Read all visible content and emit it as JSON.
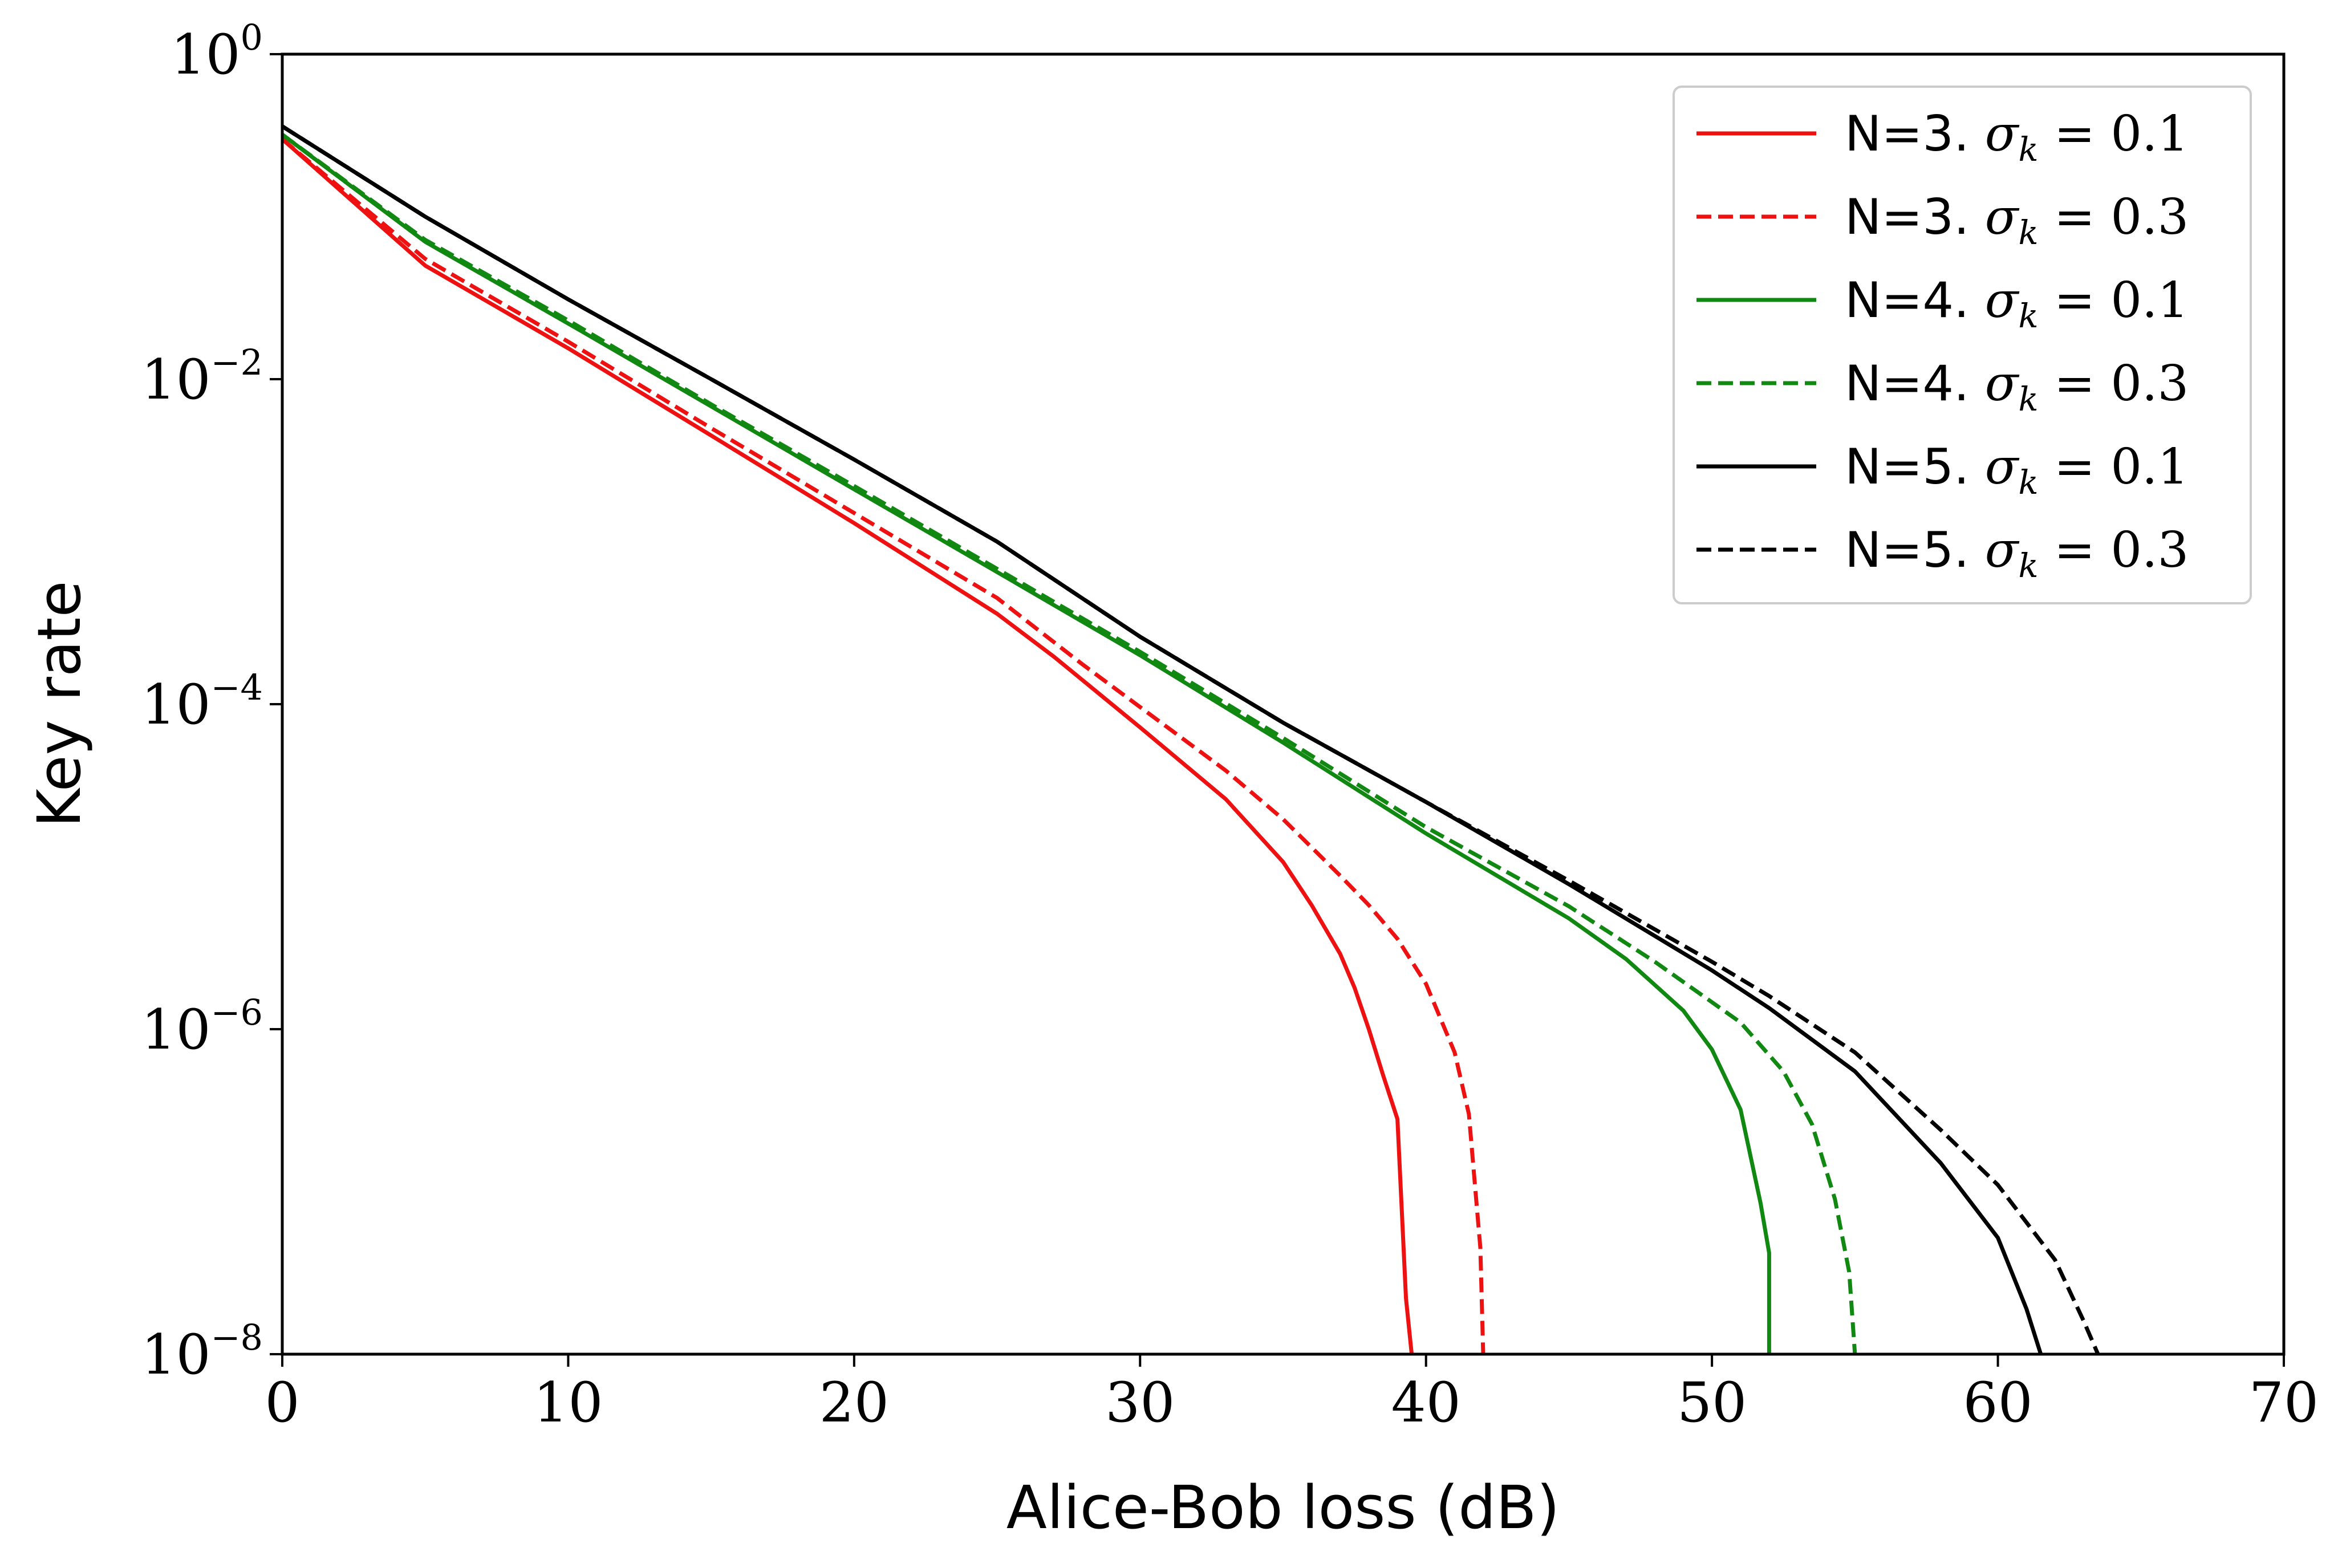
{
  "chart_data": {
    "type": "line",
    "title": "",
    "xlabel": "Alice-Bob loss (dB)",
    "ylabel": "Key rate",
    "xlim": [
      0,
      70
    ],
    "ylim": [
      1e-08,
      1
    ],
    "yscale": "log",
    "grid": false,
    "legend_position": "top-right",
    "x_ticks": [
      0,
      10,
      20,
      30,
      40,
      50,
      60,
      70
    ],
    "y_ticks": [
      {
        "base": "10",
        "exp": "0",
        "value": 1
      },
      {
        "base": "10",
        "exp": "−2",
        "value": 0.01
      },
      {
        "base": "10",
        "exp": "−4",
        "value": 0.0001
      },
      {
        "base": "10",
        "exp": "−6",
        "value": 1e-06
      },
      {
        "base": "10",
        "exp": "−8",
        "value": 1e-08
      }
    ],
    "series": [
      {
        "name": "N=3. σk = 0.1",
        "legend_prefix": "N=3.",
        "legend_sigma": "σ",
        "legend_sub": "k",
        "legend_eq": " = 0.1",
        "color": "#ee1111",
        "dash": "solid",
        "points": [
          [
            0,
            0.3
          ],
          [
            5,
            0.05
          ],
          [
            10,
            0.0155
          ],
          [
            15,
            0.0045
          ],
          [
            20,
            0.0013
          ],
          [
            25,
            0.00036
          ],
          [
            27,
            0.000195
          ],
          [
            30,
            7.2e-05
          ],
          [
            33,
            2.6e-05
          ],
          [
            35,
            1.07e-05
          ],
          [
            36,
            5.8e-06
          ],
          [
            37,
            2.9e-06
          ],
          [
            37.5,
            1.8e-06
          ],
          [
            38,
            1e-06
          ],
          [
            38.5,
            5.2e-07
          ],
          [
            39,
            2.8e-07
          ],
          [
            39.3,
            2.2e-08
          ],
          [
            39.5,
            1e-08
          ]
        ]
      },
      {
        "name": "N=3. σk = 0.3",
        "legend_prefix": "N=3.",
        "legend_sigma": "σ",
        "legend_sub": "k",
        "legend_eq": " = 0.3",
        "color": "#ee1111",
        "dash": "dashed",
        "points": [
          [
            0,
            0.3
          ],
          [
            5,
            0.055
          ],
          [
            10,
            0.017
          ],
          [
            15,
            0.005
          ],
          [
            20,
            0.0015
          ],
          [
            25,
            0.00045
          ],
          [
            28,
            0.000175
          ],
          [
            30,
            9.6e-05
          ],
          [
            33,
            3.9e-05
          ],
          [
            35,
            1.96e-05
          ],
          [
            37,
            8.8e-06
          ],
          [
            38,
            5.8e-06
          ],
          [
            39,
            3.6e-06
          ],
          [
            40,
            1.9e-06
          ],
          [
            41,
            7.2e-07
          ],
          [
            41.5,
            3e-07
          ],
          [
            41.9,
            4.5e-08
          ],
          [
            42,
            1e-08
          ]
        ]
      },
      {
        "name": "N=4. σk = 0.1",
        "legend_prefix": "N=4.",
        "legend_sigma": "σ",
        "legend_sub": "k",
        "legend_eq": " = 0.1",
        "color": "#118811",
        "dash": "solid",
        "points": [
          [
            0,
            0.32
          ],
          [
            5,
            0.07
          ],
          [
            10,
            0.022
          ],
          [
            15,
            0.0068
          ],
          [
            20,
            0.0021
          ],
          [
            25,
            0.00065
          ],
          [
            30,
            0.0002
          ],
          [
            35,
            5.8e-05
          ],
          [
            40,
            1.6e-05
          ],
          [
            45,
            4.8e-06
          ],
          [
            47,
            2.7e-06
          ],
          [
            49,
            1.3e-06
          ],
          [
            50,
            7.5e-07
          ],
          [
            51,
            3.2e-07
          ],
          [
            51.7,
            8.5e-08
          ],
          [
            52,
            4.2e-08
          ],
          [
            52,
            1e-08
          ]
        ]
      },
      {
        "name": "N=4. σk = 0.3",
        "legend_prefix": "N=4.",
        "legend_sigma": "σ",
        "legend_sub": "k",
        "legend_eq": " = 0.3",
        "color": "#118811",
        "dash": "dashed",
        "points": [
          [
            0,
            0.32
          ],
          [
            5,
            0.072
          ],
          [
            10,
            0.023
          ],
          [
            15,
            0.007
          ],
          [
            20,
            0.0022
          ],
          [
            25,
            0.00068
          ],
          [
            30,
            0.00021
          ],
          [
            35,
            6.2e-05
          ],
          [
            40,
            1.75e-05
          ],
          [
            45,
            5.7e-06
          ],
          [
            48,
            2.6e-06
          ],
          [
            51,
            1.1e-06
          ],
          [
            52.5,
            5.5e-07
          ],
          [
            53.5,
            2.6e-07
          ],
          [
            54.3,
            9e-08
          ],
          [
            54.8,
            3.2e-08
          ],
          [
            55,
            1e-08
          ]
        ]
      },
      {
        "name": "N=5. σk = 0.1",
        "legend_prefix": "N=5.",
        "legend_sigma": "σ",
        "legend_sub": "k",
        "legend_eq": " = 0.1",
        "color": "#000000",
        "dash": "solid",
        "points": [
          [
            0,
            0.36
          ],
          [
            5,
            0.1
          ],
          [
            10,
            0.031
          ],
          [
            15,
            0.01
          ],
          [
            20,
            0.0032
          ],
          [
            25,
            0.001
          ],
          [
            30,
            0.00026
          ],
          [
            35,
            7.7e-05
          ],
          [
            40,
            2.5e-05
          ],
          [
            45,
            7.8e-06
          ],
          [
            50,
            2.3e-06
          ],
          [
            52,
            1.35e-06
          ],
          [
            55,
            5.5e-07
          ],
          [
            58,
            1.5e-07
          ],
          [
            60,
            5.2e-08
          ],
          [
            61,
            1.9e-08
          ],
          [
            61.5,
            1e-08
          ]
        ]
      },
      {
        "name": "N=5. σk = 0.3",
        "legend_prefix": "N=5.",
        "legend_sigma": "σ",
        "legend_sub": "k",
        "legend_eq": " = 0.3",
        "color": "#000000",
        "dash": "dashed",
        "points": [
          [
            0,
            0.36
          ],
          [
            5,
            0.1
          ],
          [
            10,
            0.031
          ],
          [
            15,
            0.01
          ],
          [
            20,
            0.0032
          ],
          [
            25,
            0.001
          ],
          [
            30,
            0.00026
          ],
          [
            35,
            7.7e-05
          ],
          [
            40,
            2.5e-05
          ],
          [
            45,
            8.2e-06
          ],
          [
            50,
            2.6e-06
          ],
          [
            52,
            1.6e-06
          ],
          [
            55,
            7.2e-07
          ],
          [
            58,
            2.4e-07
          ],
          [
            60,
            1.1e-07
          ],
          [
            62,
            3.8e-08
          ],
          [
            63,
            1.6e-08
          ],
          [
            63.5,
            1e-08
          ]
        ]
      }
    ]
  }
}
